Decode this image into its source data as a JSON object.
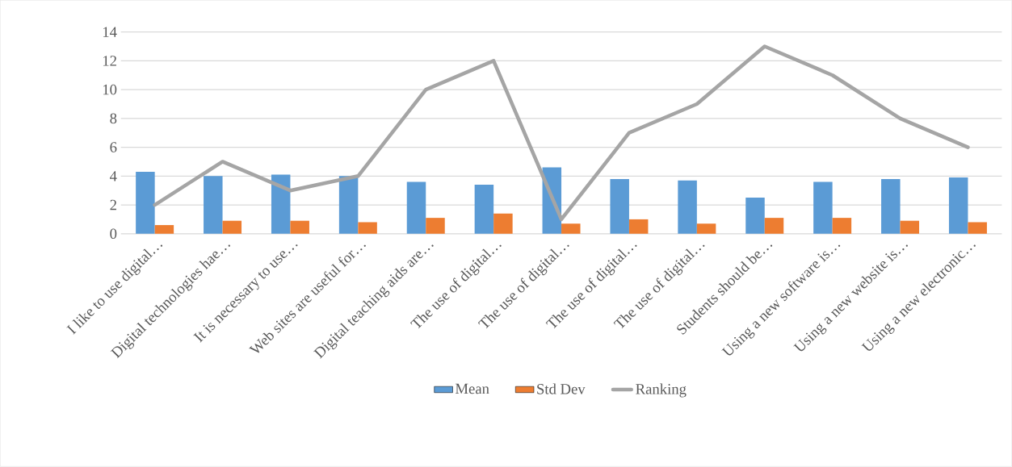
{
  "chart_data": {
    "type": "bar",
    "categories": [
      "I like to use digital…",
      "Digital technologies hae…",
      "It is necessary to use…",
      "Web sites are useful for…",
      "Digital teaching aids are…",
      "The use of digital…",
      "The use of digital…",
      "The use of digital…",
      "The use of digital…",
      "Students should be…",
      "Using a new software is…",
      "Using a new website is…",
      "Using a new electronic…"
    ],
    "series": [
      {
        "name": "Mean",
        "color": "#5b9bd5",
        "values": [
          4.3,
          4.0,
          4.1,
          4.0,
          3.6,
          3.4,
          4.6,
          3.8,
          3.7,
          2.5,
          3.6,
          3.8,
          3.9
        ]
      },
      {
        "name": "Std Dev",
        "color": "#ed7d31",
        "values": [
          0.6,
          0.9,
          0.9,
          0.8,
          1.1,
          1.4,
          0.7,
          1.0,
          0.7,
          1.1,
          1.1,
          0.9,
          0.8
        ]
      },
      {
        "name": "Ranking",
        "type": "line",
        "color": "#a5a5a5",
        "values": [
          2,
          5,
          3,
          4,
          10,
          12,
          1,
          7,
          9,
          13,
          11,
          8,
          6
        ]
      }
    ],
    "ylim": [
      0,
      14
    ],
    "yticks": [
      0,
      2,
      4,
      6,
      8,
      10,
      12,
      14
    ],
    "grid": "y",
    "legend": "bottom"
  }
}
